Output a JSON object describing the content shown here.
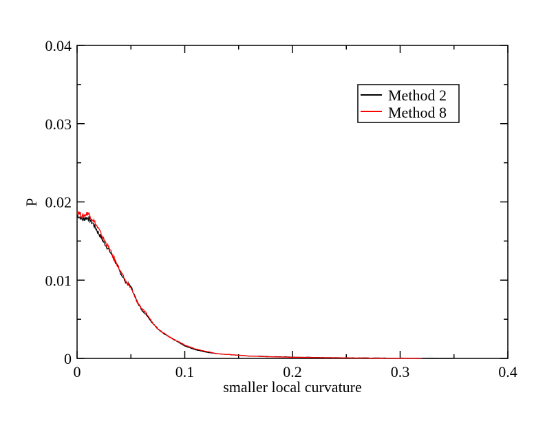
{
  "chart_data": {
    "type": "line",
    "title": "",
    "xlabel": "smaller local curvature",
    "ylabel": "P",
    "xlim": [
      0,
      0.4
    ],
    "ylim": [
      0,
      0.04
    ],
    "x_major_ticks": [
      0,
      0.1,
      0.2,
      0.3,
      0.4
    ],
    "x_tick_labels": [
      "0",
      "0.1",
      "0.2",
      "0.3",
      "0.4"
    ],
    "x_minor_step": 0.05,
    "y_major_ticks": [
      0,
      0.01,
      0.02,
      0.03,
      0.04
    ],
    "y_tick_labels": [
      "0",
      "0.01",
      "0.02",
      "0.03",
      "0.04"
    ],
    "y_minor_step": 0.005,
    "grid": false,
    "legend_position": "top-right",
    "series": [
      {
        "name": "Method 2",
        "color": "#000000",
        "x": [
          0,
          0.005,
          0.01,
          0.015,
          0.02,
          0.025,
          0.03,
          0.035,
          0.04,
          0.045,
          0.05,
          0.055,
          0.06,
          0.065,
          0.07,
          0.075,
          0.08,
          0.085,
          0.09,
          0.095,
          0.1,
          0.11,
          0.12,
          0.13,
          0.14,
          0.15,
          0.16,
          0.17,
          0.18,
          0.19,
          0.2,
          0.22,
          0.24,
          0.26,
          0.28,
          0.3,
          0.32,
          0.34,
          0.35
        ],
        "y": [
          0.0183,
          0.0178,
          0.018,
          0.0172,
          0.016,
          0.0148,
          0.0138,
          0.0125,
          0.011,
          0.0098,
          0.0092,
          0.0075,
          0.0062,
          0.0055,
          0.0045,
          0.0038,
          0.0032,
          0.0028,
          0.0024,
          0.002,
          0.0016,
          0.0011,
          0.0008,
          0.0006,
          0.0005,
          0.0004,
          0.0003,
          0.00028,
          0.00022,
          0.0002,
          0.00016,
          0.00012,
          9e-05,
          6e-05,
          4e-05,
          3e-05,
          2e-05,
          1e-05,
          1e-05
        ]
      },
      {
        "name": "Method 8",
        "color": "#ff0000",
        "x": [
          0,
          0.005,
          0.01,
          0.015,
          0.02,
          0.025,
          0.03,
          0.035,
          0.04,
          0.045,
          0.05,
          0.055,
          0.06,
          0.065,
          0.07,
          0.075,
          0.08,
          0.085,
          0.09,
          0.095,
          0.1,
          0.11,
          0.12,
          0.13,
          0.14,
          0.15,
          0.16,
          0.17,
          0.18,
          0.19,
          0.2,
          0.22,
          0.24,
          0.26,
          0.28,
          0.3,
          0.32
        ],
        "y": [
          0.0189,
          0.0181,
          0.0186,
          0.0177,
          0.0165,
          0.0152,
          0.014,
          0.0126,
          0.0112,
          0.0099,
          0.009,
          0.0074,
          0.0064,
          0.0056,
          0.0046,
          0.0038,
          0.0033,
          0.0028,
          0.0024,
          0.0021,
          0.0017,
          0.0012,
          0.0009,
          0.0006,
          0.0005,
          0.0004,
          0.0003,
          0.00025,
          0.0002,
          0.00018,
          0.00015,
          0.0001,
          7e-05,
          5e-05,
          3e-05,
          2e-05,
          1e-05
        ]
      }
    ]
  }
}
